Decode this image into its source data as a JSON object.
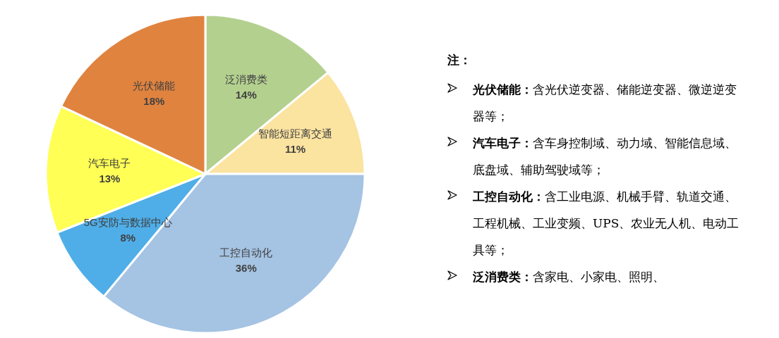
{
  "chart_data": {
    "type": "pie",
    "categories": [
      "泛消费类",
      "智能短距离交通",
      "工控自动化",
      "5G安防与数据中心",
      "汽车电子",
      "光伏储能"
    ],
    "values": [
      14,
      11,
      36,
      8,
      13,
      18
    ],
    "value_labels": [
      "14%",
      "11%",
      "36%",
      "8%",
      "13%",
      "18%"
    ],
    "colors": [
      "#b3d08f",
      "#fbe3a0",
      "#a5c3e3",
      "#4faee8",
      "#ffff55",
      "#e0833f"
    ],
    "legend": false,
    "annotations": [
      "注：",
      "光伏储能：含光伏逆变器、储能逆变器、微逆逆变器等；",
      "汽车电子：含车身控制域、动力域、智能信息域、底盘域、辅助驾驶域等；",
      "工控自动化：含工业电源、机械手臂、轨道交通、工程机械、工业变频、UPS、农业无人机、电动工具等；",
      "泛消费类：含家电、小家电、照明、"
    ]
  }
}
